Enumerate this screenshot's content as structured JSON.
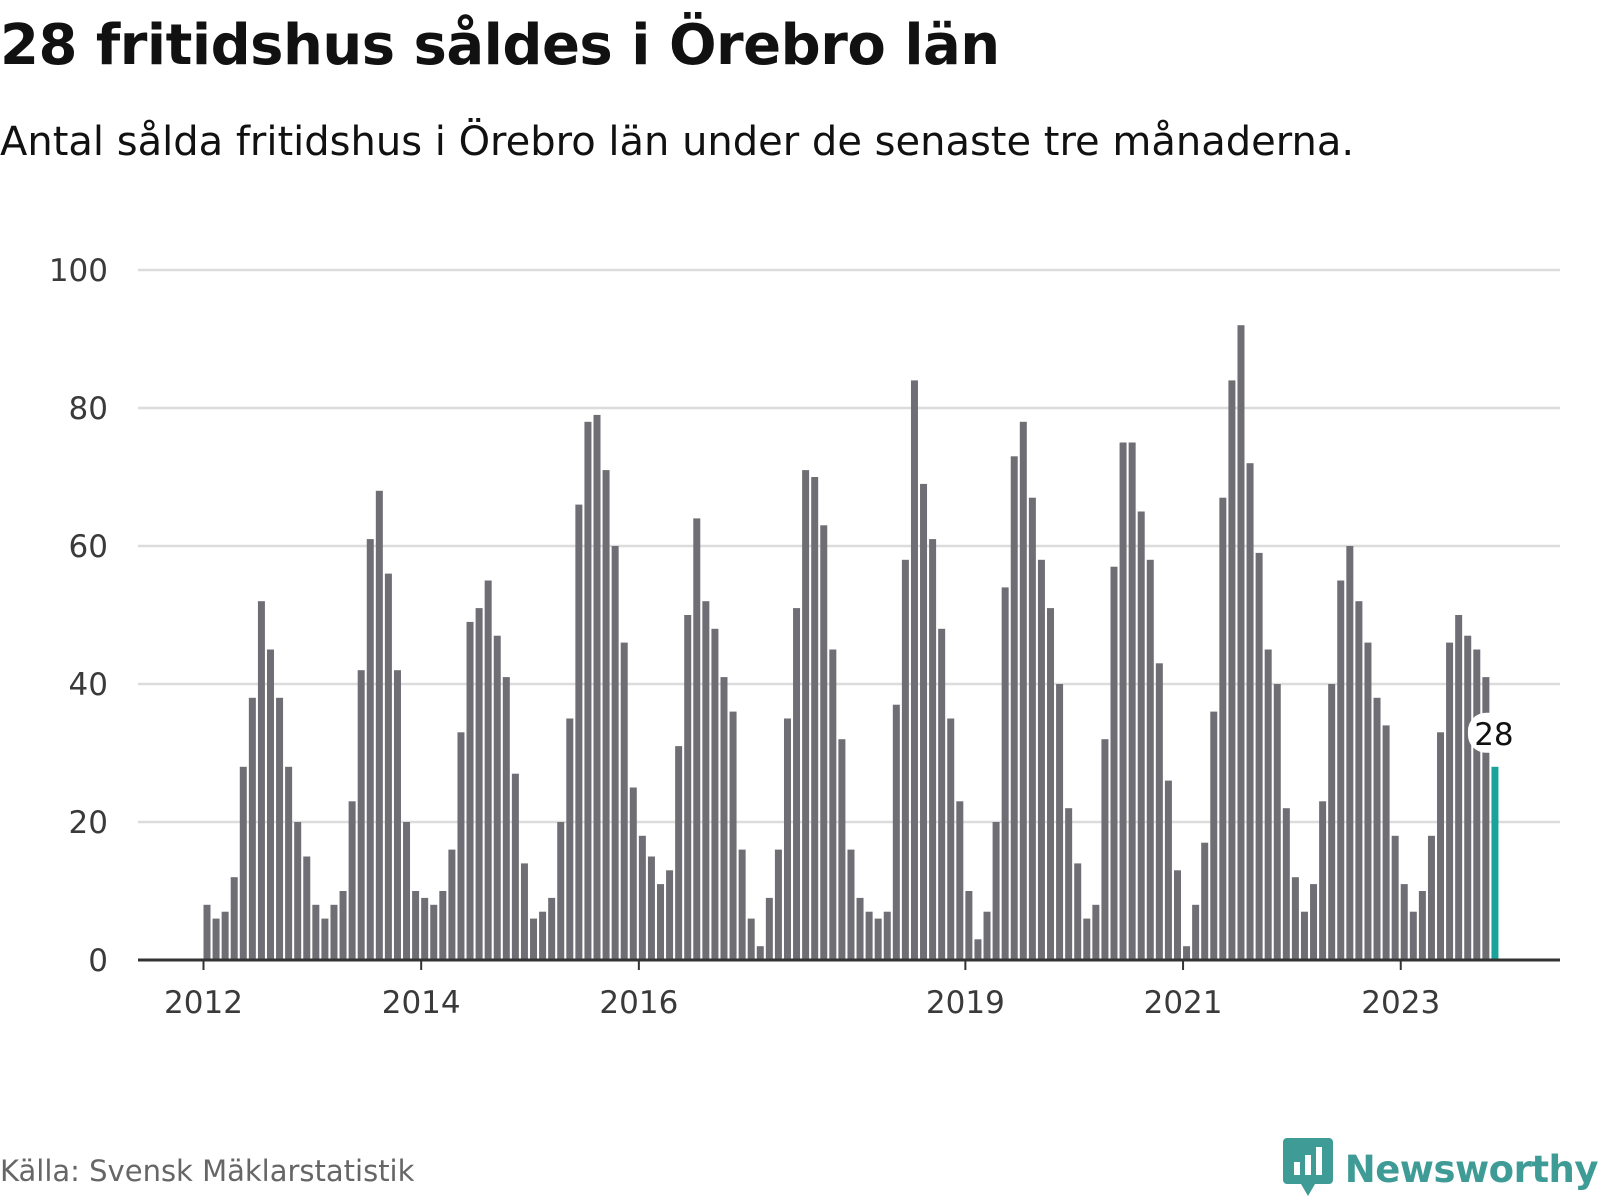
{
  "title": "28 fritidshus såldes i Örebro län",
  "subtitle": "Antal sålda fritidshus i Örebro län under de senaste tre månaderna.",
  "source": "Källa: Svensk Mäklarstatistik",
  "brand": {
    "name": "Newsworthy",
    "icon": "newsworthy-logo-icon",
    "color": "#3f9b96"
  },
  "colors": {
    "bar": "#6f6e74",
    "highlight": "#1aa39a",
    "grid": "#dcdcdc",
    "axis": "#333333"
  },
  "chart_data": {
    "type": "bar",
    "ylim": [
      0,
      100
    ],
    "yticks": [
      0,
      20,
      40,
      60,
      80,
      100
    ],
    "grid": true,
    "x_start_index": 8,
    "x_ticks": [
      {
        "label": "2012",
        "index": 8
      },
      {
        "label": "2014",
        "index": 32
      },
      {
        "label": "2016",
        "index": 56
      },
      {
        "label": "2019",
        "index": 92
      },
      {
        "label": "2021",
        "index": 116
      },
      {
        "label": "2023",
        "index": 140
      }
    ],
    "values": [
      8,
      6,
      7,
      12,
      28,
      38,
      52,
      45,
      38,
      28,
      20,
      15,
      8,
      6,
      8,
      10,
      23,
      42,
      61,
      68,
      56,
      42,
      20,
      10,
      9,
      8,
      10,
      16,
      33,
      49,
      51,
      55,
      47,
      41,
      27,
      14,
      6,
      7,
      9,
      20,
      35,
      66,
      78,
      79,
      71,
      60,
      46,
      25,
      18,
      15,
      11,
      13,
      31,
      50,
      64,
      52,
      48,
      41,
      36,
      16,
      6,
      2,
      9,
      16,
      35,
      51,
      71,
      70,
      63,
      45,
      32,
      16,
      9,
      7,
      6,
      7,
      37,
      58,
      84,
      69,
      61,
      48,
      35,
      23,
      10,
      3,
      7,
      20,
      54,
      73,
      78,
      67,
      58,
      51,
      40,
      22,
      14,
      6,
      8,
      32,
      57,
      75,
      75,
      65,
      58,
      43,
      26,
      13,
      2,
      8,
      17,
      36,
      67,
      84,
      92,
      72,
      59,
      45,
      40,
      22,
      12,
      7,
      11,
      23,
      40,
      55,
      60,
      52,
      46,
      38,
      34,
      18,
      11,
      7,
      10,
      18,
      33,
      46,
      50,
      47,
      45,
      41,
      28
    ],
    "highlight_last": true,
    "callout": "28"
  }
}
